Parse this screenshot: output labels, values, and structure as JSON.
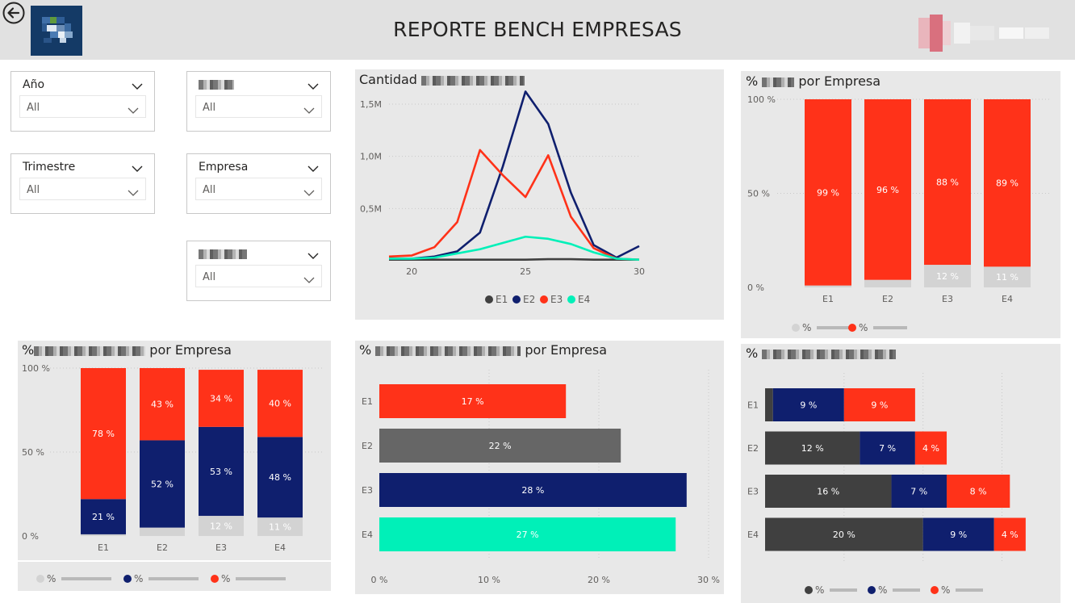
{
  "header": {
    "title": "REPORTE BENCH EMPRESAS"
  },
  "filters": [
    {
      "id": "anio",
      "label": "Año",
      "value": "All"
    },
    {
      "id": "f2",
      "label": "",
      "value": "All"
    },
    {
      "id": "trimestre",
      "label": "Trimestre",
      "value": "All"
    },
    {
      "id": "empresa",
      "label": "Empresa",
      "value": "Empresa",
      "value2": "All"
    },
    {
      "id": "f5",
      "label": "",
      "value": "All"
    }
  ],
  "filter_labels": {
    "anio": "Año",
    "trimestre": "Trimestre",
    "empresa": "Empresa",
    "all": "All"
  },
  "panels": {
    "line": {
      "title": "Cantidad"
    },
    "top_right": {
      "title_pre": "%",
      "title_post": "por Empresa"
    },
    "bottom_left": {
      "title_pre": "%",
      "title_post": "por Empresa"
    },
    "bottom_mid": {
      "title_pre": "%",
      "title_post": "por Empresa"
    },
    "bottom_right": {
      "title_pre": "%"
    }
  },
  "colors": {
    "gray": "#d3d3d3",
    "navy": "#0f1f6e",
    "red": "#ff3219",
    "teal": "#00f0b8",
    "dark": "#404040",
    "midgray": "#666666",
    "orange": "#f2672b"
  },
  "chart_data": [
    {
      "id": "line",
      "type": "line",
      "title": "Cantidad",
      "x": [
        19,
        20,
        21,
        22,
        23,
        24,
        25,
        26,
        27,
        28,
        29,
        30
      ],
      "xticks": [
        "20",
        "25",
        "30"
      ],
      "yticks": [
        "0,5M",
        "1,0M",
        "1,5M"
      ],
      "ylim": [
        0,
        1600000
      ],
      "series": [
        {
          "name": "E1",
          "color": "#404040",
          "values": [
            10000,
            10000,
            10000,
            10000,
            10000,
            10000,
            10000,
            15000,
            15000,
            10000,
            10000,
            10000
          ]
        },
        {
          "name": "E2",
          "color": "#0f1f6e",
          "values": [
            20000,
            20000,
            40000,
            90000,
            270000,
            900000,
            1620000,
            1310000,
            650000,
            150000,
            30000,
            140000
          ]
        },
        {
          "name": "E3",
          "color": "#ff3219",
          "values": [
            40000,
            50000,
            130000,
            370000,
            1060000,
            820000,
            610000,
            1010000,
            420000,
            120000,
            20000,
            10000
          ]
        },
        {
          "name": "E4",
          "color": "#00f0b8",
          "values": [
            20000,
            20000,
            30000,
            70000,
            110000,
            170000,
            230000,
            210000,
            160000,
            80000,
            20000,
            10000
          ]
        }
      ],
      "legend": [
        "E1",
        "E2",
        "E3",
        "E4"
      ],
      "legend_position": "bottom"
    },
    {
      "id": "top_right",
      "type": "bar",
      "stacked": true,
      "categories": [
        "E1",
        "E2",
        "E3",
        "E4"
      ],
      "yticks": [
        "0 %",
        "50 %",
        "100 %"
      ],
      "ylim": [
        0,
        100
      ],
      "series": [
        {
          "name": "%",
          "color": "#d3d3d3",
          "values": [
            1,
            4,
            12,
            11
          ],
          "labels": [
            "",
            "",
            "12 %",
            "11 %"
          ]
        },
        {
          "name": "%",
          "color": "#ff3219",
          "values": [
            99,
            96,
            88,
            89
          ],
          "labels": [
            "99 %",
            "96 %",
            "88 %",
            "89 %"
          ]
        }
      ],
      "legend": [
        "%",
        "%"
      ],
      "legend_position": "bottom"
    },
    {
      "id": "bottom_left",
      "type": "bar",
      "stacked": true,
      "categories": [
        "E1",
        "E2",
        "E3",
        "E4"
      ],
      "yticks": [
        "0 %",
        "50 %",
        "100 %"
      ],
      "ylim": [
        0,
        100
      ],
      "series": [
        {
          "name": "%",
          "color": "#d3d3d3",
          "values": [
            1,
            5,
            12,
            11
          ],
          "labels": [
            "",
            "",
            "12 %",
            "11 %"
          ]
        },
        {
          "name": "%",
          "color": "#0f1f6e",
          "values": [
            21,
            52,
            53,
            48
          ],
          "labels": [
            "21 %",
            "52 %",
            "53 %",
            "48 %"
          ]
        },
        {
          "name": "%",
          "color": "#ff3219",
          "values": [
            78,
            43,
            34,
            40
          ],
          "labels": [
            "78 %",
            "43 %",
            "34 %",
            "40 %"
          ]
        }
      ],
      "legend": [
        "%",
        "%",
        "%"
      ],
      "legend_position": "bottom"
    },
    {
      "id": "bottom_mid",
      "type": "bar",
      "orientation": "horizontal",
      "categories": [
        "E1",
        "E2",
        "E3",
        "E4"
      ],
      "values": [
        17,
        22,
        28,
        27
      ],
      "labels": [
        "17 %",
        "22 %",
        "28 %",
        "27 %"
      ],
      "colors": [
        "#ff3219",
        "#666666",
        "#0f1f6e",
        "#00f0b8"
      ],
      "xticks": [
        "0 %",
        "10 %",
        "20 %",
        "30 %"
      ],
      "xlim": [
        0,
        30
      ]
    },
    {
      "id": "bottom_right",
      "type": "bar",
      "orientation": "horizontal",
      "stacked": true,
      "categories": [
        "E1",
        "E2",
        "E3",
        "E4"
      ],
      "xlim": [
        0,
        37
      ],
      "series": [
        {
          "name": "%",
          "color": "#404040",
          "values": [
            1,
            12,
            16,
            20
          ],
          "labels": [
            "",
            "12 %",
            "16 %",
            "20 %"
          ]
        },
        {
          "name": "%",
          "color": "#0f1f6e",
          "values": [
            9,
            7,
            7,
            9
          ],
          "labels": [
            "9 %",
            "7 %",
            "7 %",
            "9 %"
          ]
        },
        {
          "name": "%",
          "color": "#ff3219",
          "values": [
            9,
            4,
            8,
            4
          ],
          "labels": [
            "9 %",
            "4 %",
            "8 %",
            "4 %"
          ]
        }
      ],
      "legend": [
        "%",
        "%",
        "%"
      ],
      "legend_position": "bottom"
    }
  ]
}
